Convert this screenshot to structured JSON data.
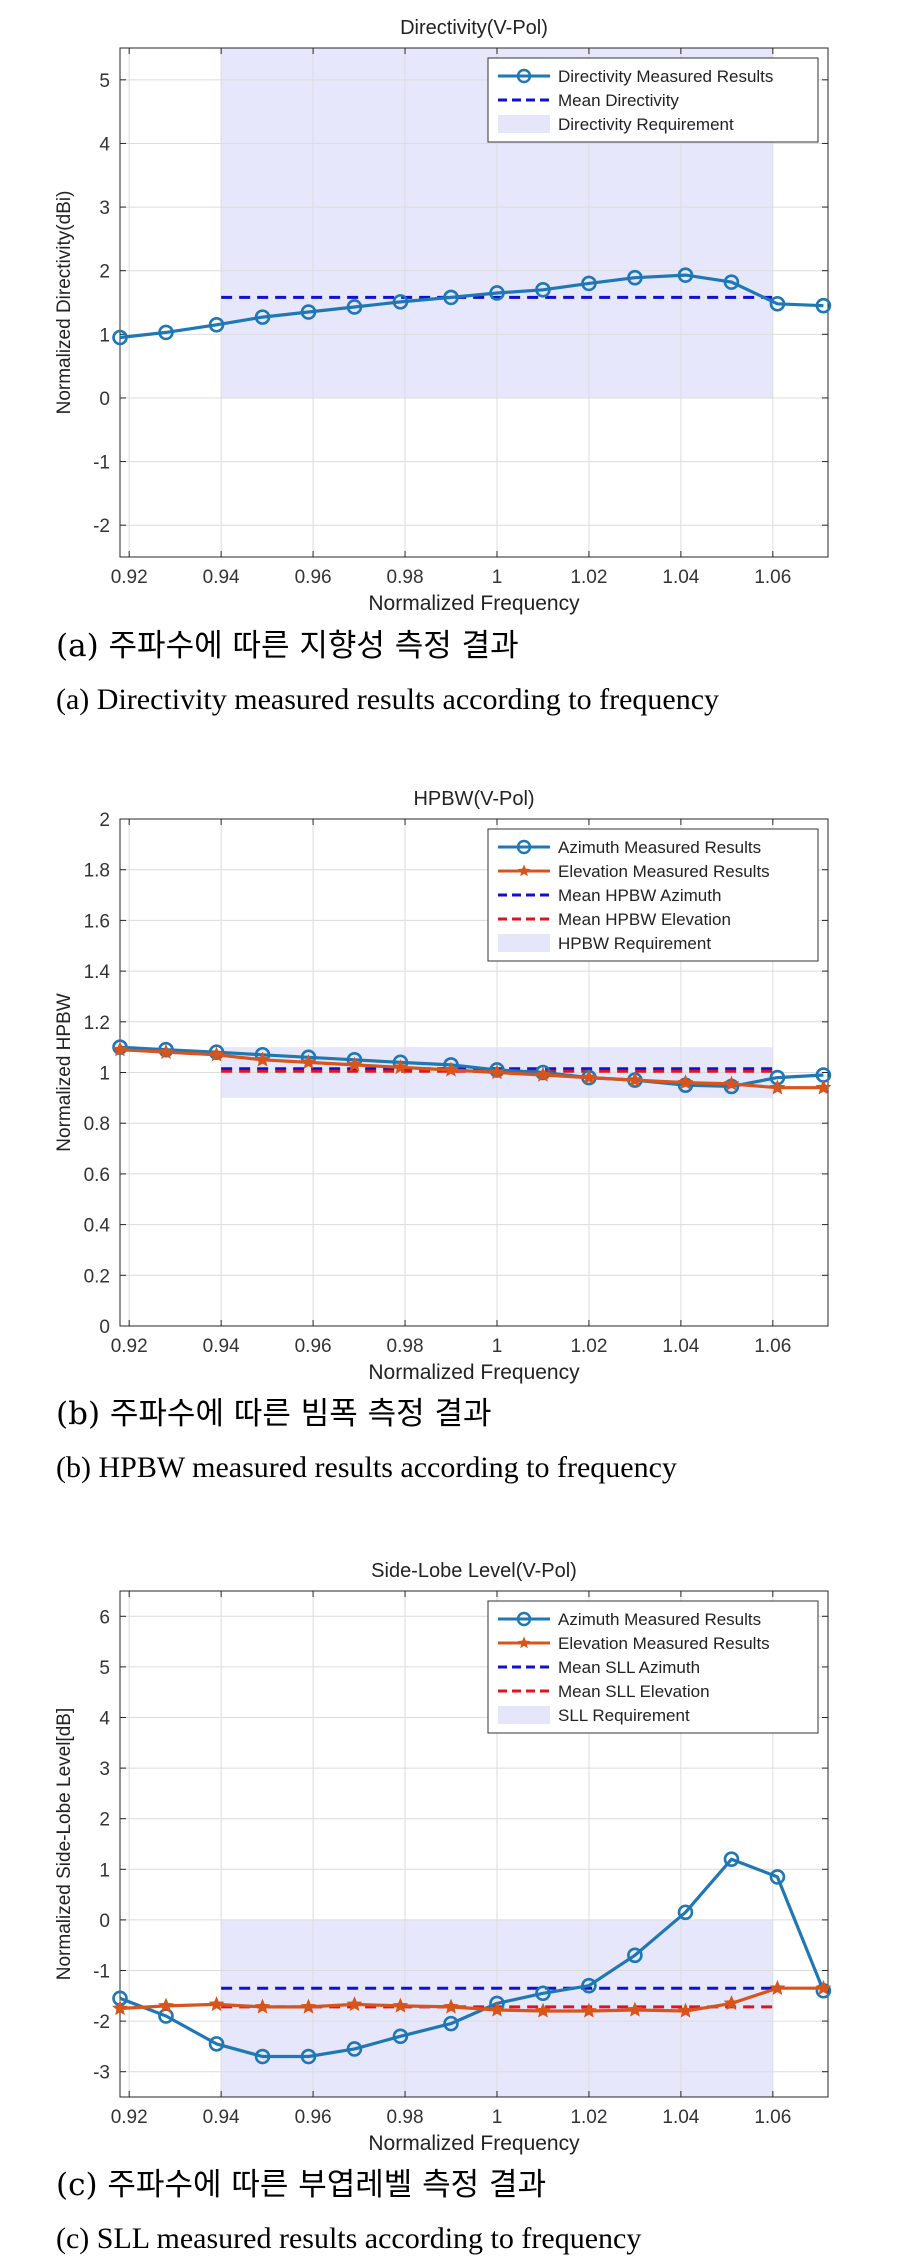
{
  "colors": {
    "azimuth": "#1f77b4",
    "elevation": "#d9541a",
    "mean_azimuth": "#1010d0",
    "mean_elevation": "#e0141e",
    "requirement": "#e6e6fb",
    "grid": "#dcdcdc",
    "axis": "#262626"
  },
  "chart_data": [
    {
      "type": "line",
      "title": "Directivity(V-Pol)",
      "xlabel": "Normalized Frequency",
      "ylabel": "Normalized Directivity(dBi)",
      "xlim": [
        0.918,
        1.072
      ],
      "ylim": [
        -2.5,
        5.5
      ],
      "xticks": [
        0.92,
        0.94,
        0.96,
        0.98,
        1,
        1.02,
        1.04,
        1.06
      ],
      "xtick_labels": [
        "0.92",
        "0.94",
        "0.96",
        "0.98",
        "1",
        "1.02",
        "1.04",
        "1.06"
      ],
      "yticks": [
        -2,
        -1,
        0,
        1,
        2,
        3,
        4,
        5
      ],
      "ytick_labels": [
        "-2",
        "-1",
        "0",
        "1",
        "2",
        "3",
        "4",
        "5"
      ],
      "grid": true,
      "legend_position": "top-right",
      "x": [
        0.918,
        0.928,
        0.939,
        0.949,
        0.959,
        0.969,
        0.979,
        0.99,
        1.0,
        1.01,
        1.02,
        1.03,
        1.041,
        1.051,
        1.061,
        1.071
      ],
      "series": [
        {
          "name": "Directivity Measured Results",
          "kind": "measured",
          "marker": "o",
          "color_key": "azimuth",
          "values": [
            0.95,
            1.03,
            1.15,
            1.27,
            1.35,
            1.43,
            1.51,
            1.58,
            1.65,
            1.7,
            1.8,
            1.89,
            1.93,
            1.82,
            1.48,
            1.45
          ]
        }
      ],
      "means": [
        {
          "name": "Mean Directivity",
          "color_key": "mean_azimuth",
          "value": 1.58,
          "x_range": [
            0.94,
            1.06
          ]
        }
      ],
      "requirement": {
        "name": "Directivity Requirement",
        "x_range": [
          0.94,
          1.06
        ],
        "y_range": [
          0,
          5.5
        ]
      }
    },
    {
      "type": "line",
      "title": "HPBW(V-Pol)",
      "xlabel": "Normalized Frequency",
      "ylabel": "Normalized HPBW",
      "xlim": [
        0.918,
        1.072
      ],
      "ylim": [
        0,
        2
      ],
      "xticks": [
        0.92,
        0.94,
        0.96,
        0.98,
        1,
        1.02,
        1.04,
        1.06
      ],
      "xtick_labels": [
        "0.92",
        "0.94",
        "0.96",
        "0.98",
        "1",
        "1.02",
        "1.04",
        "1.06"
      ],
      "yticks": [
        0,
        0.2,
        0.4,
        0.6,
        0.8,
        1,
        1.2,
        1.4,
        1.6,
        1.8,
        2
      ],
      "ytick_labels": [
        "0",
        "0.2",
        "0.4",
        "0.6",
        "0.8",
        "1",
        "1.2",
        "1.4",
        "1.6",
        "1.8",
        "2"
      ],
      "grid": true,
      "legend_position": "top-right",
      "x": [
        0.918,
        0.928,
        0.939,
        0.949,
        0.959,
        0.969,
        0.979,
        0.99,
        1.0,
        1.01,
        1.02,
        1.03,
        1.041,
        1.051,
        1.061,
        1.071
      ],
      "series": [
        {
          "name": "Azimuth Measured Results",
          "kind": "measured",
          "marker": "o",
          "color_key": "azimuth",
          "values": [
            1.1,
            1.09,
            1.08,
            1.07,
            1.06,
            1.05,
            1.04,
            1.03,
            1.01,
            1.0,
            0.98,
            0.97,
            0.95,
            0.945,
            0.98,
            0.99
          ]
        },
        {
          "name": "Elevation Measured Results",
          "kind": "measured",
          "marker": "*",
          "color_key": "elevation",
          "values": [
            1.09,
            1.08,
            1.07,
            1.05,
            1.04,
            1.03,
            1.02,
            1.01,
            1.0,
            0.99,
            0.98,
            0.97,
            0.96,
            0.955,
            0.94,
            0.94
          ]
        }
      ],
      "means": [
        {
          "name": "Mean HPBW Azimuth",
          "color_key": "mean_azimuth",
          "value": 1.015,
          "x_range": [
            0.94,
            1.06
          ]
        },
        {
          "name": "Mean HPBW Elevation",
          "color_key": "mean_elevation",
          "value": 1.005,
          "x_range": [
            0.94,
            1.06
          ]
        }
      ],
      "requirement": {
        "name": "HPBW Requirement",
        "x_range": [
          0.94,
          1.06
        ],
        "y_range": [
          0.9,
          1.1
        ]
      }
    },
    {
      "type": "line",
      "title": "Side-Lobe Level(V-Pol)",
      "xlabel": "Normalized Frequency",
      "ylabel": "Normalized Side-Lobe Level[dB]",
      "xlim": [
        0.918,
        1.072
      ],
      "ylim": [
        -3.5,
        6.5
      ],
      "xticks": [
        0.92,
        0.94,
        0.96,
        0.98,
        1,
        1.02,
        1.04,
        1.06
      ],
      "xtick_labels": [
        "0.92",
        "0.94",
        "0.96",
        "0.98",
        "1",
        "1.02",
        "1.04",
        "1.06"
      ],
      "yticks": [
        -3,
        -2,
        -1,
        0,
        1,
        2,
        3,
        4,
        5,
        6
      ],
      "ytick_labels": [
        "-3",
        "-2",
        "-1",
        "0",
        "1",
        "2",
        "3",
        "4",
        "5",
        "6"
      ],
      "grid": true,
      "legend_position": "top-right",
      "x": [
        0.918,
        0.928,
        0.939,
        0.949,
        0.959,
        0.969,
        0.979,
        0.99,
        1.0,
        1.01,
        1.02,
        1.03,
        1.041,
        1.051,
        1.061,
        1.071
      ],
      "series": [
        {
          "name": "Azimuth Measured Results",
          "kind": "measured",
          "marker": "o",
          "color_key": "azimuth",
          "values": [
            -1.55,
            -1.9,
            -2.45,
            -2.7,
            -2.7,
            -2.55,
            -2.3,
            -2.05,
            -1.65,
            -1.45,
            -1.3,
            -0.7,
            0.15,
            1.2,
            0.85,
            -1.4
          ]
        },
        {
          "name": "Elevation Measured Results",
          "kind": "measured",
          "marker": "*",
          "color_key": "elevation",
          "values": [
            -1.75,
            -1.7,
            -1.67,
            -1.72,
            -1.72,
            -1.67,
            -1.7,
            -1.72,
            -1.78,
            -1.8,
            -1.8,
            -1.78,
            -1.8,
            -1.65,
            -1.35,
            -1.35
          ]
        }
      ],
      "means": [
        {
          "name": "Mean SLL Azimuth",
          "color_key": "mean_azimuth",
          "value": -1.35,
          "x_range": [
            0.94,
            1.06
          ]
        },
        {
          "name": "Mean SLL Elevation",
          "color_key": "mean_elevation",
          "value": -1.72,
          "x_range": [
            0.94,
            1.06
          ]
        }
      ],
      "requirement": {
        "name": "SLL Requirement",
        "x_range": [
          0.94,
          1.06
        ],
        "y_range": [
          -3.5,
          0
        ]
      }
    }
  ],
  "captions": [
    {
      "ko": "(a) 주파수에 따른 지향성 측정 결과",
      "en": "(a) Directivity measured results according to frequency"
    },
    {
      "ko": "(b) 주파수에 따른 빔폭 측정 결과",
      "en": "(b) HPBW measured results according to frequency"
    },
    {
      "ko": "(c) 주파수에 따른 부엽레벨 측정 결과",
      "en": "(c) SLL measured results according to frequency"
    }
  ]
}
